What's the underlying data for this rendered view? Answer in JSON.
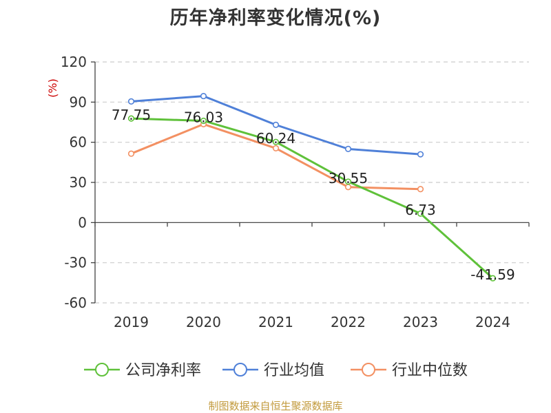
{
  "chart_data": {
    "type": "line",
    "title": "历年净利率变化情况(%)",
    "ylabel": "(%)",
    "categories": [
      "2019",
      "2020",
      "2021",
      "2022",
      "2023",
      "2024"
    ],
    "ylim": [
      -60,
      120
    ],
    "yticks": [
      120,
      90,
      60,
      30,
      0,
      -30,
      -60
    ],
    "grid": true,
    "legend_position": "bottom",
    "series": [
      {
        "name": "公司净利率",
        "color": "#5fc13a",
        "values": [
          77.75,
          76.03,
          60.24,
          30.55,
          6.73,
          -41.59
        ],
        "labels": [
          "77.75",
          "76.03",
          "60.24",
          "30.55",
          "6.73",
          "-41.59"
        ]
      },
      {
        "name": "行业均值",
        "color": "#4f80d8",
        "values": [
          90.5,
          94.5,
          73.0,
          55.0,
          51.0,
          null
        ]
      },
      {
        "name": "行业中位数",
        "color": "#f39062",
        "values": [
          51.5,
          73.5,
          55.5,
          26.5,
          25.0,
          null
        ]
      }
    ]
  },
  "footer": {
    "source": "制图数据来自恒生聚源数据库"
  }
}
